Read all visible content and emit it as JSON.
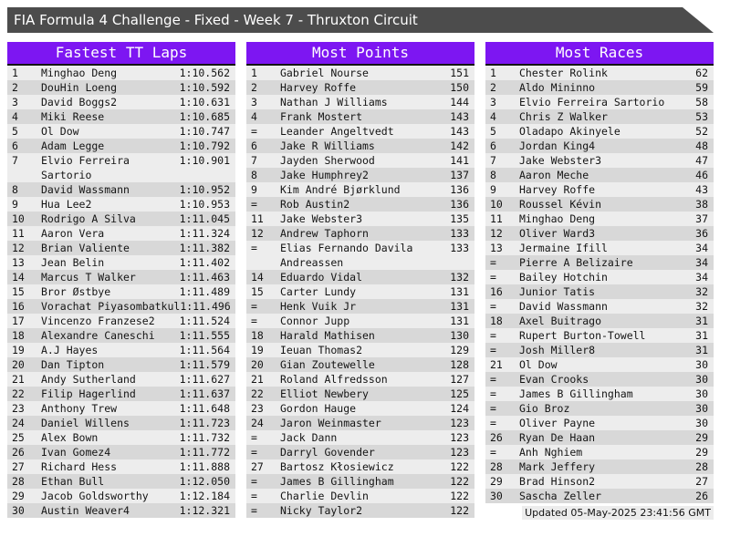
{
  "title": "FIA Formula 4 Challenge - Fixed - Week 7 - Thruxton Circuit",
  "updated": "Updated 05-May-2025 23:41:56 GMT",
  "colors": {
    "accent": "#7D16F2",
    "titlebar": "#4C4C4C",
    "row-odd": "#EDEDED",
    "row-even": "#D8D8D8",
    "border": "#141414",
    "text": "#141414",
    "updated-bg": "#ECECEC"
  },
  "boards": [
    {
      "title": "Fastest TT Laps",
      "rows": [
        {
          "rank": "1",
          "name": "Minghao Deng",
          "value": "1:10.562"
        },
        {
          "rank": "2",
          "name": "DouHin Loeng",
          "value": "1:10.592"
        },
        {
          "rank": "3",
          "name": "David Boggs2",
          "value": "1:10.631"
        },
        {
          "rank": "4",
          "name": "Miki Reese",
          "value": "1:10.685"
        },
        {
          "rank": "5",
          "name": "Ol Dow",
          "value": "1:10.747"
        },
        {
          "rank": "6",
          "name": "Adam Legge",
          "value": "1:10.792"
        },
        {
          "rank": "7",
          "name": "Elvio Ferreira\nSartorio",
          "value": "1:10.901"
        },
        {
          "rank": "8",
          "name": "David Wassmann",
          "value": "1:10.952"
        },
        {
          "rank": "9",
          "name": "Hua Lee2",
          "value": "1:10.953"
        },
        {
          "rank": "10",
          "name": "Rodrigo A Silva",
          "value": "1:11.045"
        },
        {
          "rank": "11",
          "name": "Aaron Vera",
          "value": "1:11.324"
        },
        {
          "rank": "12",
          "name": "Brian Valiente",
          "value": "1:11.382"
        },
        {
          "rank": "13",
          "name": "Jean Belin",
          "value": "1:11.402"
        },
        {
          "rank": "14",
          "name": "Marcus T Walker",
          "value": "1:11.463"
        },
        {
          "rank": "15",
          "name": "Bror Østbye",
          "value": "1:11.489"
        },
        {
          "rank": "16",
          "name": "Vorachat Piyasombatkul",
          "value": "1:11.496"
        },
        {
          "rank": "17",
          "name": "Vincenzo Franzese2",
          "value": "1:11.524"
        },
        {
          "rank": "18",
          "name": "Alexandre Caneschi",
          "value": "1:11.555"
        },
        {
          "rank": "19",
          "name": "A.J Hayes",
          "value": "1:11.564"
        },
        {
          "rank": "20",
          "name": "Dan Tipton",
          "value": "1:11.579"
        },
        {
          "rank": "21",
          "name": "Andy Sutherland",
          "value": "1:11.627"
        },
        {
          "rank": "22",
          "name": "Filip Hagerlind",
          "value": "1:11.637"
        },
        {
          "rank": "23",
          "name": "Anthony Trew",
          "value": "1:11.648"
        },
        {
          "rank": "24",
          "name": "Daniel Willens",
          "value": "1:11.723"
        },
        {
          "rank": "25",
          "name": "Alex Bown",
          "value": "1:11.732"
        },
        {
          "rank": "26",
          "name": "Ivan Gomez4",
          "value": "1:11.772"
        },
        {
          "rank": "27",
          "name": "Richard Hess",
          "value": "1:11.888"
        },
        {
          "rank": "28",
          "name": "Ethan Bull",
          "value": "1:12.050"
        },
        {
          "rank": "29",
          "name": "Jacob Goldsworthy",
          "value": "1:12.184"
        },
        {
          "rank": "30",
          "name": "Austin Weaver4",
          "value": "1:12.321"
        }
      ]
    },
    {
      "title": "Most Points",
      "rows": [
        {
          "rank": "1",
          "name": "Gabriel Nourse",
          "value": "151"
        },
        {
          "rank": "2",
          "name": "Harvey Roffe",
          "value": "150"
        },
        {
          "rank": "3",
          "name": "Nathan J Williams",
          "value": "144"
        },
        {
          "rank": "4",
          "name": "Frank Mostert",
          "value": "143"
        },
        {
          "rank": "=",
          "name": "Leander Angeltvedt",
          "value": "143"
        },
        {
          "rank": "6",
          "name": "Jake R Williams",
          "value": "142"
        },
        {
          "rank": "7",
          "name": "Jayden Sherwood",
          "value": "141"
        },
        {
          "rank": "8",
          "name": "Jake Humphrey2",
          "value": "137"
        },
        {
          "rank": "9",
          "name": "Kim André Bjørklund",
          "value": "136"
        },
        {
          "rank": "=",
          "name": "Rob Austin2",
          "value": "136"
        },
        {
          "rank": "11",
          "name": "Jake Webster3",
          "value": "135"
        },
        {
          "rank": "12",
          "name": "Andrew Taphorn",
          "value": "133"
        },
        {
          "rank": "=",
          "name": "Elias Fernando Davila\nAndreassen",
          "value": "133"
        },
        {
          "rank": "14",
          "name": "Eduardo Vidal",
          "value": "132"
        },
        {
          "rank": "15",
          "name": "Carter Lundy",
          "value": "131"
        },
        {
          "rank": "=",
          "name": "Henk Vuik Jr",
          "value": "131"
        },
        {
          "rank": "=",
          "name": "Connor Jupp",
          "value": "131"
        },
        {
          "rank": "18",
          "name": "Harald Mathisen",
          "value": "130"
        },
        {
          "rank": "19",
          "name": "Ieuan Thomas2",
          "value": "129"
        },
        {
          "rank": "20",
          "name": "Gian Zoutewelle",
          "value": "128"
        },
        {
          "rank": "21",
          "name": "Roland Alfredsson",
          "value": "127"
        },
        {
          "rank": "22",
          "name": "Elliot Newbery",
          "value": "125"
        },
        {
          "rank": "23",
          "name": "Gordon Hauge",
          "value": "124"
        },
        {
          "rank": "24",
          "name": "Jaron Weinmaster",
          "value": "123"
        },
        {
          "rank": "=",
          "name": "Jack Dann",
          "value": "123"
        },
        {
          "rank": "=",
          "name": "Darryl Govender",
          "value": "123"
        },
        {
          "rank": "27",
          "name": "Bartosz Kłosiewicz",
          "value": "122"
        },
        {
          "rank": "=",
          "name": "James B Gillingham",
          "value": "122"
        },
        {
          "rank": "=",
          "name": "Charlie Devlin",
          "value": "122"
        },
        {
          "rank": "=",
          "name": "Nicky Taylor2",
          "value": "122"
        }
      ]
    },
    {
      "title": "Most Races",
      "rows": [
        {
          "rank": "1",
          "name": "Chester Rolink",
          "value": "62"
        },
        {
          "rank": "2",
          "name": "Aldo Mininno",
          "value": "59"
        },
        {
          "rank": "3",
          "name": "Elvio Ferreira Sartorio",
          "value": "58"
        },
        {
          "rank": "4",
          "name": "Chris Z Walker",
          "value": "53"
        },
        {
          "rank": "5",
          "name": "Oladapo Akinyele",
          "value": "52"
        },
        {
          "rank": "6",
          "name": "Jordan King4",
          "value": "48"
        },
        {
          "rank": "7",
          "name": "Jake Webster3",
          "value": "47"
        },
        {
          "rank": "8",
          "name": "Aaron Meche",
          "value": "46"
        },
        {
          "rank": "9",
          "name": "Harvey Roffe",
          "value": "43"
        },
        {
          "rank": "10",
          "name": "Roussel Kévin",
          "value": "38"
        },
        {
          "rank": "11",
          "name": "Minghao Deng",
          "value": "37"
        },
        {
          "rank": "12",
          "name": "Oliver Ward3",
          "value": "36"
        },
        {
          "rank": "13",
          "name": "Jermaine Ifill",
          "value": "34"
        },
        {
          "rank": "=",
          "name": "Pierre A Belizaire",
          "value": "34"
        },
        {
          "rank": "=",
          "name": "Bailey Hotchin",
          "value": "34"
        },
        {
          "rank": "16",
          "name": "Junior Tatis",
          "value": "32"
        },
        {
          "rank": "=",
          "name": "David Wassmann",
          "value": "32"
        },
        {
          "rank": "18",
          "name": "Axel Buitrago",
          "value": "31"
        },
        {
          "rank": "=",
          "name": "Rupert Burton-Towell",
          "value": "31"
        },
        {
          "rank": "=",
          "name": "Josh Miller8",
          "value": "31"
        },
        {
          "rank": "21",
          "name": "Ol Dow",
          "value": "30"
        },
        {
          "rank": "=",
          "name": "Evan Crooks",
          "value": "30"
        },
        {
          "rank": "=",
          "name": "James B Gillingham",
          "value": "30"
        },
        {
          "rank": "=",
          "name": "Gio Broz",
          "value": "30"
        },
        {
          "rank": "=",
          "name": "Oliver Payne",
          "value": "30"
        },
        {
          "rank": "26",
          "name": "Ryan De Haan",
          "value": "29"
        },
        {
          "rank": "=",
          "name": "Anh Nghiem",
          "value": "29"
        },
        {
          "rank": "28",
          "name": "Mark Jeffery",
          "value": "28"
        },
        {
          "rank": "29",
          "name": "Brad Hinson2",
          "value": "27"
        },
        {
          "rank": "30",
          "name": "Sascha Zeller",
          "value": "26"
        }
      ]
    }
  ]
}
